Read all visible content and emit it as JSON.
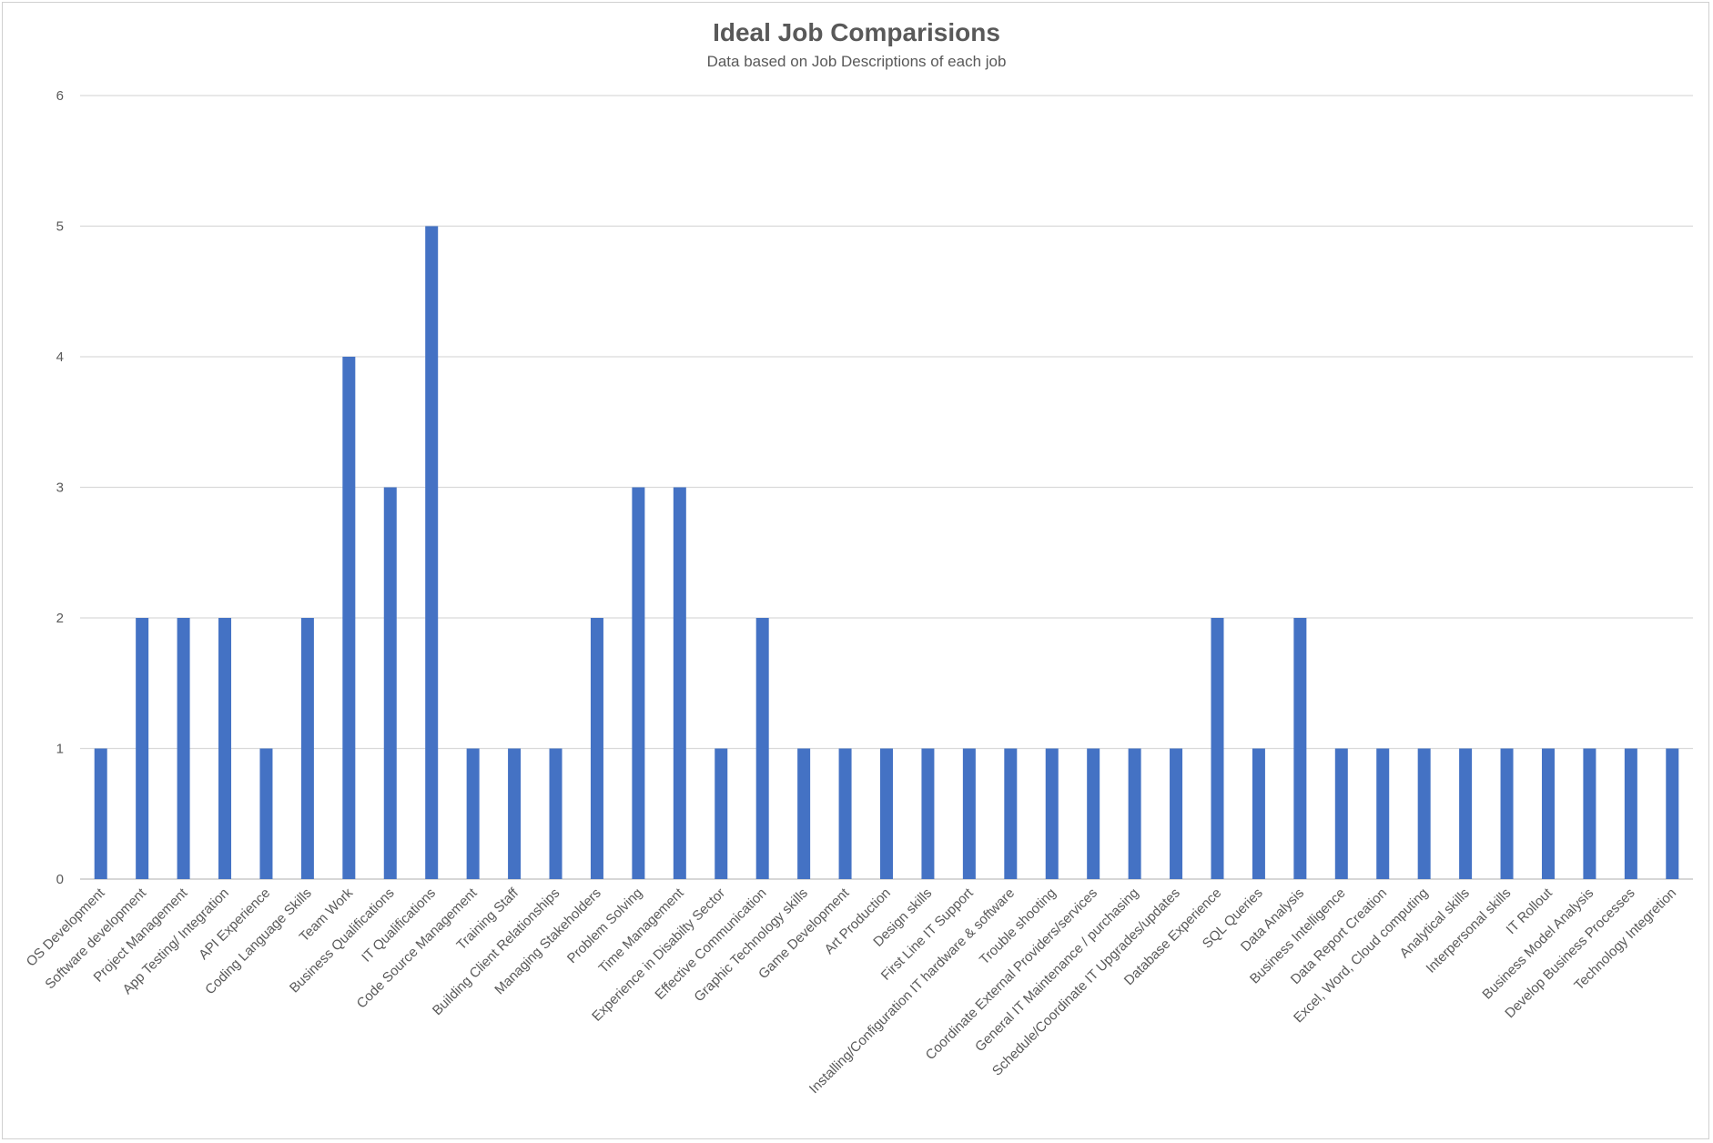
{
  "chart_data": {
    "type": "bar",
    "title": "Ideal Job Comparisions",
    "subtitle": "Data based on Job Descriptions of each job",
    "xlabel": "",
    "ylabel": "",
    "ylim": [
      0,
      6
    ],
    "yticks": [
      0,
      1,
      2,
      3,
      4,
      5,
      6
    ],
    "grid": true,
    "legend": "none",
    "bar_color": "#4472C4",
    "categories": [
      "OS Development",
      "Software development",
      "Project Management",
      "App Testing/ Integration",
      "API Experience",
      "Coding Language Skills",
      "Team Work",
      "Business Qualifications",
      "IT Qualifications",
      "Code Source Management",
      "Training Staff",
      "Building Client Relationships",
      "Managing Stakeholders",
      "Problem Solving",
      "Time Management",
      "Experience in Disabilty Sector",
      "Effective Communication",
      "Graphic Technology skills",
      "Game Development",
      "Art Production",
      "Design skills",
      "First Line IT Support",
      "Installing/Configuration IT hardware & software",
      "Trouble shooting",
      "Coordinate External Providers/services",
      "General IT Maintenance / purchasing",
      "Schedule/Coordinate IT Upgrades/updates",
      "Database Experience",
      "SQL Queries",
      "Data Analysis",
      "Business Intelligence",
      "Data Report Creation",
      "Excel, Word, Cloud computing",
      "Analytical skills",
      "Interpersonal skills",
      "IT Rollout",
      "Business Model Analysis",
      "Develop Business Processes",
      "Technology Integretion"
    ],
    "values": [
      1,
      2,
      2,
      2,
      1,
      2,
      4,
      3,
      5,
      1,
      1,
      1,
      2,
      3,
      3,
      1,
      2,
      1,
      1,
      1,
      1,
      1,
      1,
      1,
      1,
      1,
      1,
      2,
      1,
      2,
      1,
      1,
      1,
      1,
      1,
      1,
      1,
      1,
      1
    ]
  }
}
